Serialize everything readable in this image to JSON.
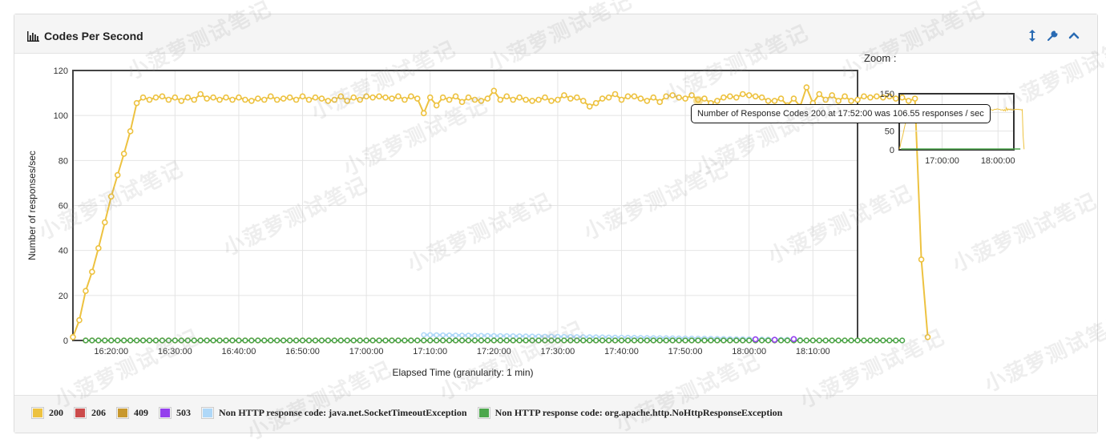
{
  "panel": {
    "title": "Codes Per Second",
    "tools": [
      "resize-icon",
      "wrench-icon",
      "chevron-up-icon"
    ]
  },
  "zoom_label": "Zoom :",
  "tooltip": "Number of Response Codes 200 at 17:52:00 was 106.55 responses / sec",
  "watermark": "小菠萝测试笔记",
  "colors": {
    "s200": "#edc240",
    "s206": "#cb4b4b",
    "s409": "#c8982e",
    "s503": "#9440ed",
    "timeout": "#afd8f8",
    "nohttp": "#4da74d"
  },
  "chart_data": {
    "type": "line",
    "xlabel": "Elapsed Time (granularity: 1 min)",
    "ylabel": "Number of responses/sec",
    "ylim": [
      0,
      120
    ],
    "yticks": [
      0,
      20,
      40,
      60,
      80,
      100,
      120
    ],
    "xlim": [
      "16:14:00",
      "18:17:00"
    ],
    "xticks": [
      "16:20:00",
      "16:30:00",
      "16:40:00",
      "16:50:00",
      "17:00:00",
      "17:10:00",
      "17:20:00",
      "17:30:00",
      "17:40:00",
      "17:50:00",
      "18:00:00",
      "18:10:00"
    ],
    "grid": true,
    "x_start": "16:14:00",
    "x_step_min": 1,
    "series": [
      {
        "name": "200",
        "color_key": "s200",
        "values": [
          1.5,
          9,
          22,
          30.5,
          41,
          52.5,
          64,
          73.5,
          83,
          93,
          105.5,
          108,
          107,
          108,
          108.5,
          107,
          108,
          106.5,
          108,
          107,
          109.5,
          107.5,
          108,
          107,
          108,
          107,
          108,
          107,
          106.5,
          107.5,
          107,
          108.5,
          107,
          107.5,
          108,
          107,
          108.5,
          107,
          108,
          107.5,
          106.5,
          107,
          108.5,
          106.5,
          108,
          107,
          108.5,
          108,
          108.5,
          108,
          107.5,
          108.5,
          107,
          108.5,
          107.5,
          101,
          108,
          104.5,
          108,
          107,
          108.5,
          106,
          108,
          107,
          106.5,
          107.5,
          111,
          107,
          108.5,
          107,
          108,
          107,
          106.5,
          107,
          108,
          106.5,
          107,
          109,
          107.5,
          108,
          106.5,
          104,
          105.5,
          107.5,
          108,
          109.5,
          107,
          108.5,
          108.5,
          107.5,
          106.5,
          108,
          106,
          108.5,
          109,
          108,
          107.5,
          109,
          107,
          107.5,
          105.5,
          106.5,
          108,
          108.5,
          108,
          109.5,
          109,
          108.5,
          108,
          106.5,
          106.5,
          107.5,
          104.5,
          107.5,
          104,
          112.5,
          105.5,
          109.5,
          107,
          109,
          106.5,
          108.5,
          106.5,
          107,
          108.5,
          108,
          108.5,
          108,
          108.5,
          107.5,
          108,
          106.5,
          107.5,
          36,
          1.5
        ]
      },
      {
        "name": "206",
        "color_key": "s206",
        "start": 2,
        "end": 105,
        "values": [
          0
        ]
      },
      {
        "name": "409",
        "color_key": "s409",
        "start": 2,
        "end": 129,
        "values": [
          0
        ]
      },
      {
        "name": "503",
        "color_key": "s503",
        "points": [
          [
            107,
            0.5
          ],
          [
            110,
            0.3
          ],
          [
            113,
            0.6
          ]
        ]
      },
      {
        "name": "Non HTTP response code: java.net.SocketTimeoutException",
        "color_key": "timeout",
        "start": 55,
        "end": 114,
        "from": 2.5,
        "to": 0.3
      },
      {
        "name": "Non HTTP response code: org.apache.http.NoHttpResponseException",
        "color_key": "nohttp",
        "start": 2,
        "end": 130,
        "values": [
          0
        ]
      }
    ]
  },
  "zoom": {
    "ylim": [
      0,
      150
    ],
    "yticks": [
      0,
      50,
      100,
      150
    ],
    "xticks": [
      "17:00:00",
      "18:00:00"
    ]
  },
  "legend": [
    "200",
    "206",
    "409",
    "503",
    "Non HTTP response code: java.net.SocketTimeoutException",
    "Non HTTP response code: org.apache.http.NoHttpResponseException"
  ]
}
